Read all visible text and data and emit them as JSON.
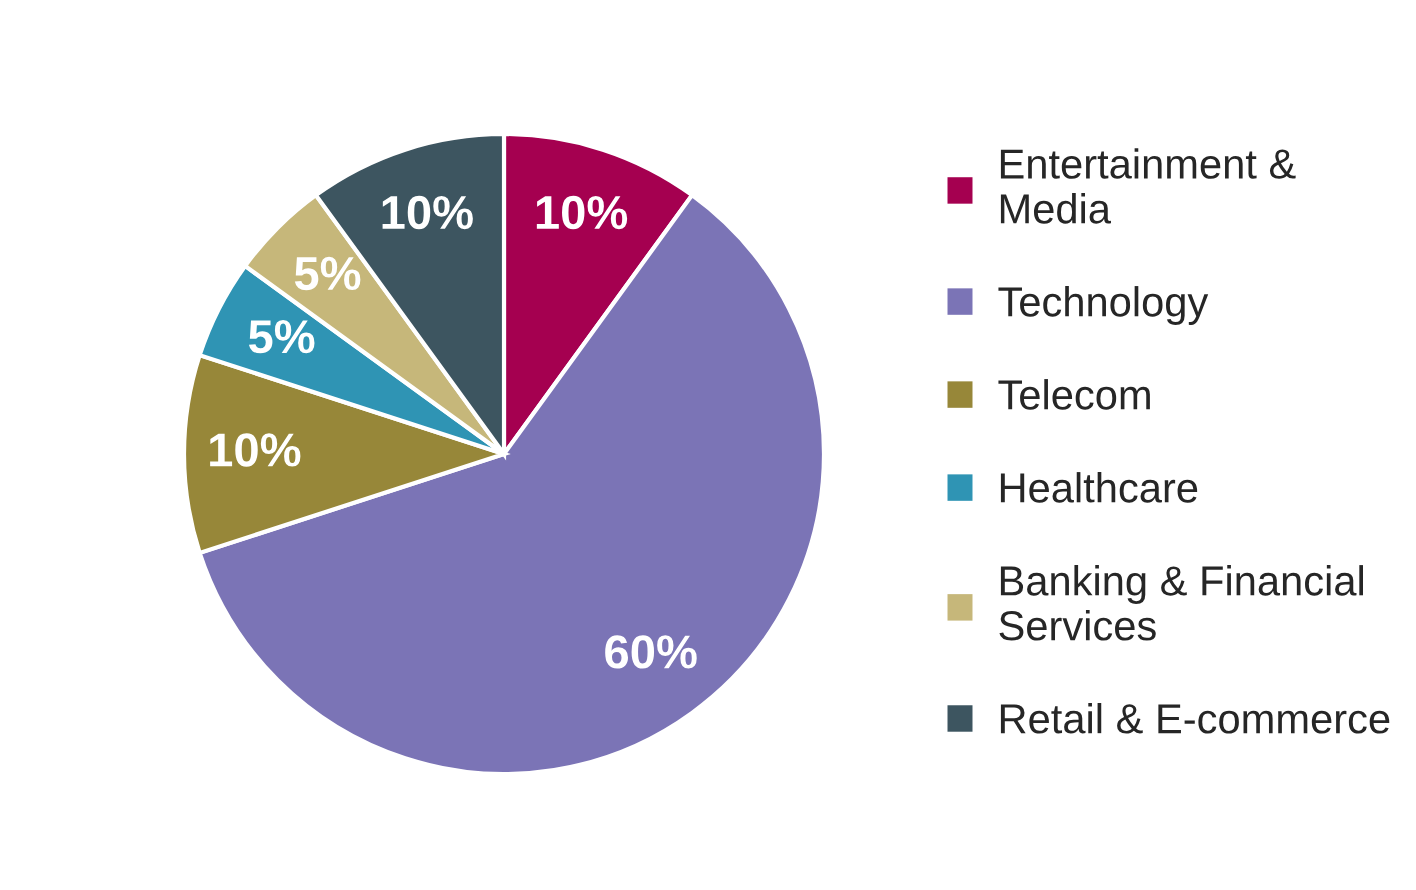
{
  "chart_data": {
    "type": "pie",
    "categories": [
      "Entertainment & Media",
      "Technology",
      "Telecom",
      "Healthcare",
      "Banking & Financial Services",
      "Retail & E-commerce"
    ],
    "values": [
      10,
      60,
      10,
      5,
      5,
      10
    ],
    "value_labels": [
      "10%",
      "60%",
      "10%",
      "5%",
      "5%",
      "10%"
    ],
    "colors": [
      "#a50050",
      "#7b74b6",
      "#978739",
      "#2f94b4",
      "#c6b77a",
      "#3d5560"
    ],
    "legend": "right"
  }
}
